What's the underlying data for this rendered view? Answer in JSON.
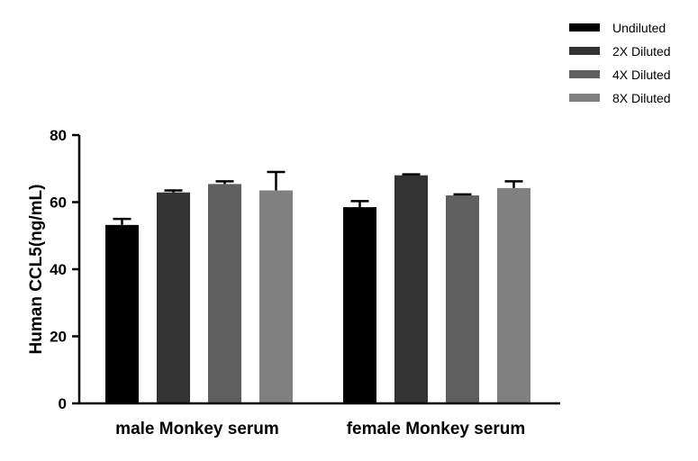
{
  "chart_data": {
    "type": "bar",
    "title": "",
    "xlabel": "",
    "ylabel": "Human CCL5(ng/mL)",
    "ylim": [
      0,
      80
    ],
    "yticks": [
      0,
      20,
      40,
      60,
      80
    ],
    "grid": false,
    "legend_position": "top-right",
    "categories": [
      "male Monkey serum",
      "female Monkey serum"
    ],
    "series": [
      {
        "name": "Undiluted",
        "color": "#000000",
        "values": [
          53.2,
          58.5
        ],
        "errors": [
          1.8,
          1.8
        ]
      },
      {
        "name": "2X Diluted",
        "color": "#333333",
        "values": [
          62.9,
          68.0
        ],
        "errors": [
          0.6,
          0.3
        ]
      },
      {
        "name": "4X Diluted",
        "color": "#5f5f5f",
        "values": [
          65.4,
          62.0
        ],
        "errors": [
          0.8,
          0.3
        ]
      },
      {
        "name": "8X Diluted",
        "color": "#808080",
        "values": [
          63.5,
          64.2
        ],
        "errors": [
          5.5,
          2.0
        ]
      }
    ]
  }
}
